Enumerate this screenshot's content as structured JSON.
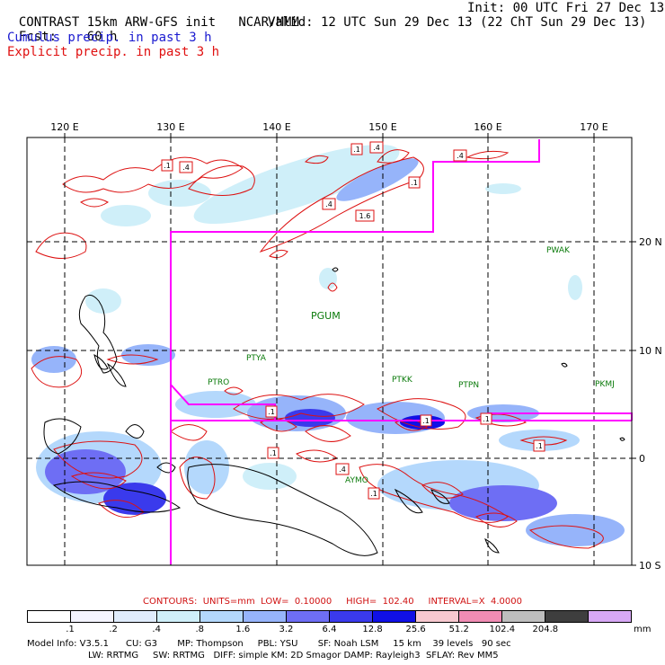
{
  "header": {
    "title": "CONTRAST 15km ARW-GFS init",
    "org": "NCAR/MMM",
    "init": "Init: 00 UTC Fri 27 Dec 13",
    "fcst_label": "Fcst:",
    "fcst_value": "60 h",
    "valid": "Valid: 12 UTC Sun 29 Dec 13 (22 ChT Sun 29 Dec 13)",
    "cumulus": "Cumulus precip. in past 3 h",
    "explicit": "Explicit precip. in past 3 h"
  },
  "map": {
    "lon_labels": [
      "120 E",
      "130 E",
      "140 E",
      "150 E",
      "160 E",
      "170 E"
    ],
    "lat_labels": [
      "20 N",
      "10 N",
      "0",
      "10 S"
    ],
    "stations": [
      {
        "id": "PWAK",
        "label": "PWAK"
      },
      {
        "id": "PGUM",
        "label": "PGUM"
      },
      {
        "id": "PTYA",
        "label": "PTYA"
      },
      {
        "id": "PTRO",
        "label": "PTRO"
      },
      {
        "id": "PTKK",
        "label": "PTKK"
      },
      {
        "id": "PTPN",
        "label": "PTPN"
      },
      {
        "id": "PKMJ",
        "label": "PKMJ"
      },
      {
        "id": "AYMO",
        "label": "AYMO"
      }
    ],
    "box_labels": [
      ".1",
      ".4",
      ".1",
      ".4",
      ".4",
      ".1",
      ".4",
      "1.6",
      ".1",
      ".1",
      ".1",
      ".4",
      ".1",
      ".1",
      ".1"
    ],
    "colors": {
      "frame": "#000000",
      "domain_box": "#ff00ff",
      "contour": "#dd1111",
      "coast": "#000000"
    }
  },
  "contours": {
    "prefix": "CONTOURS:",
    "units": "UNITS=mm",
    "low": "LOW=  0.10000",
    "high": "HIGH=  102.40",
    "interval": "INTERVAL=X  4.0000"
  },
  "colorbar": {
    "labels": [
      ".1",
      ".2",
      ".4",
      ".8",
      "1.6",
      "3.2",
      "6.4",
      "12.8",
      "25.6",
      "51.2",
      "102.4",
      "204.8"
    ],
    "units": "mm",
    "colors": [
      "#ffffff",
      "#f4f4ff",
      "#e0ecfc",
      "#cfeff9",
      "#b4d8fc",
      "#96b4fa",
      "#6e6ef4",
      "#3a3aec",
      "#1010e6",
      "#f7c8cf",
      "#f08cb4",
      "#bebebe",
      "#3e3e3e",
      "#d7a8f5"
    ]
  },
  "model_info": {
    "line1": "Model Info: V3.5.1      CU: G3       MP: Thompson     PBL: YSU       SF: Noah LSM     15 km    39 levels   90 sec",
    "line2": "LW: RRTMG     SW: RRTMG   DIFF: simple KM: 2D Smagor DAMP: Rayleigh3  SFLAY: Rev MM5"
  }
}
